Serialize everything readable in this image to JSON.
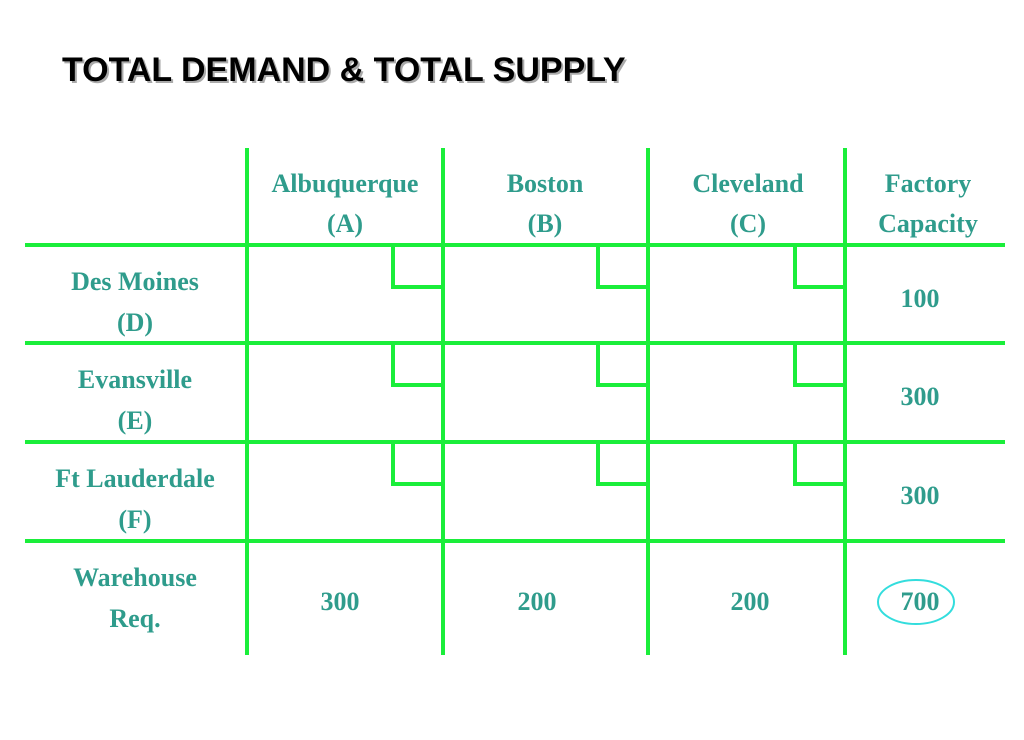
{
  "header": {
    "title": "TOTAL DEMAND & TOTAL SUPPLY"
  },
  "table": {
    "columns": [
      [
        "Albuquerque",
        "(A)"
      ],
      [
        "Boston",
        "(B)"
      ],
      [
        "Cleveland",
        "(C)"
      ],
      [
        "Factory",
        "Capacity"
      ]
    ],
    "rows": [
      {
        "label": [
          "Des Moines",
          "(D)"
        ],
        "capacity": 100
      },
      {
        "label": [
          "Evansville",
          "(E)"
        ],
        "capacity": 300
      },
      {
        "label": [
          "Ft Lauderdale",
          "(F)"
        ],
        "capacity": 300
      }
    ],
    "requirements": {
      "label": [
        "Warehouse",
        "Req."
      ],
      "values": [
        300,
        200,
        200
      ],
      "total": 700
    }
  }
}
